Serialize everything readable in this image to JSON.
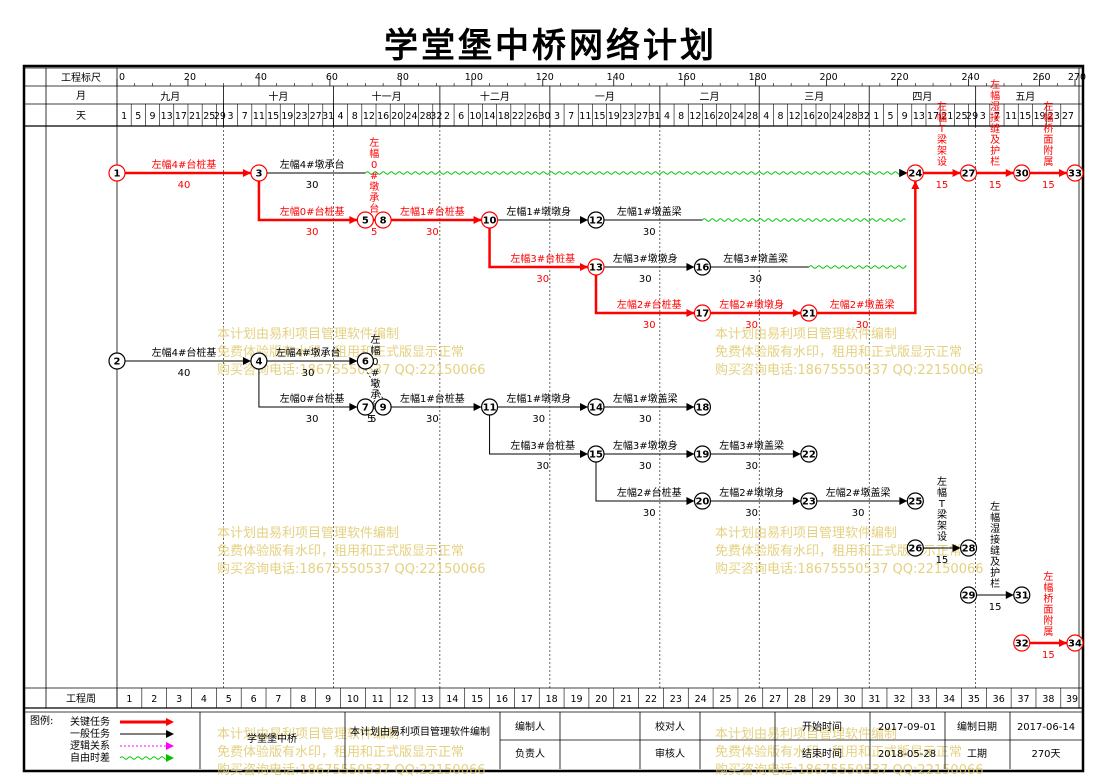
{
  "title": "学堂堡中桥网络计划",
  "header": {
    "row_labels": {
      "scale": "工程标尺",
      "month": "月",
      "day": "天"
    },
    "bottom_label": "工程周",
    "scale_ticks": [
      {
        "v": 0,
        "t": "0"
      },
      {
        "v": 20,
        "t": "20"
      },
      {
        "v": 40,
        "t": "40"
      },
      {
        "v": 60,
        "t": "60"
      },
      {
        "v": 80,
        "t": "80"
      },
      {
        "v": 100,
        "t": "100"
      },
      {
        "v": 120,
        "t": "120"
      },
      {
        "v": 140,
        "t": "140"
      },
      {
        "v": 160,
        "t": "160"
      },
      {
        "v": 180,
        "t": "180"
      },
      {
        "v": 200,
        "t": "200"
      },
      {
        "v": 220,
        "t": "220"
      },
      {
        "v": 240,
        "t": "240"
      },
      {
        "v": 260,
        "t": "260"
      },
      {
        "v": 270,
        "t": "270"
      }
    ],
    "months": [
      {
        "name": "九月",
        "days": 30,
        "start": 1
      },
      {
        "name": "十月",
        "days": 31,
        "start": 3
      },
      {
        "name": "十一月",
        "days": 30,
        "start": 4
      },
      {
        "name": "十二月",
        "days": 31,
        "start": 2
      },
      {
        "name": "一月",
        "days": 31,
        "start": 3
      },
      {
        "name": "二月",
        "days": 28,
        "start": 4
      },
      {
        "name": "三月",
        "days": 31,
        "start": 4
      },
      {
        "name": "四月",
        "days": 30,
        "start": 1
      },
      {
        "name": "五月",
        "days": 28,
        "start": 3
      }
    ],
    "week_count": 39
  },
  "network": {
    "critical_color": "#ff0000",
    "normal_color": "#000000",
    "float_color": "#00c000",
    "nodes": [
      {
        "id": "1",
        "x": 0,
        "row": 1,
        "c": true
      },
      {
        "id": "3",
        "x": 40,
        "row": 1,
        "c": true
      },
      {
        "id": "24",
        "x": 225,
        "row": 1,
        "c": true
      },
      {
        "id": "27",
        "x": 240,
        "row": 1,
        "c": true
      },
      {
        "id": "30",
        "x": 255,
        "row": 1,
        "c": true
      },
      {
        "id": "33",
        "x": 270,
        "row": 1,
        "c": true
      },
      {
        "id": "5",
        "x": 70,
        "row": 2,
        "c": true
      },
      {
        "id": "8",
        "x": 75,
        "row": 2,
        "c": true
      },
      {
        "id": "10",
        "x": 105,
        "row": 2,
        "c": true
      },
      {
        "id": "12",
        "x": 135,
        "row": 2,
        "c": false
      },
      {
        "id": "13",
        "x": 135,
        "row": 3,
        "c": true
      },
      {
        "id": "16",
        "x": 165,
        "row": 3,
        "c": false
      },
      {
        "id": "17",
        "x": 165,
        "row": 4,
        "c": true
      },
      {
        "id": "21",
        "x": 195,
        "row": 4,
        "c": true
      },
      {
        "id": "2",
        "x": 0,
        "row": 5,
        "c": false
      },
      {
        "id": "4",
        "x": 40,
        "row": 5,
        "c": false
      },
      {
        "id": "6",
        "x": 70,
        "row": 5,
        "c": false
      },
      {
        "id": "7",
        "x": 70,
        "row": 6,
        "c": false
      },
      {
        "id": "9",
        "x": 75,
        "row": 6,
        "c": false
      },
      {
        "id": "11",
        "x": 105,
        "row": 6,
        "c": false
      },
      {
        "id": "14",
        "x": 135,
        "row": 6,
        "c": false
      },
      {
        "id": "18",
        "x": 165,
        "row": 6,
        "c": false
      },
      {
        "id": "15",
        "x": 135,
        "row": 7,
        "c": false
      },
      {
        "id": "19",
        "x": 165,
        "row": 7,
        "c": false
      },
      {
        "id": "22",
        "x": 195,
        "row": 7,
        "c": false
      },
      {
        "id": "20",
        "x": 165,
        "row": 8,
        "c": false
      },
      {
        "id": "23",
        "x": 195,
        "row": 8,
        "c": false
      },
      {
        "id": "25",
        "x": 225,
        "row": 8,
        "c": false
      },
      {
        "id": "26",
        "x": 225,
        "row": 9,
        "c": false
      },
      {
        "id": "28",
        "x": 240,
        "row": 9,
        "c": false
      },
      {
        "id": "29",
        "x": 240,
        "row": 10,
        "c": false
      },
      {
        "id": "31",
        "x": 255,
        "row": 10,
        "c": false
      },
      {
        "id": "32",
        "x": 255,
        "row": 11,
        "c": true
      },
      {
        "id": "34",
        "x": 270,
        "row": 11,
        "c": true
      }
    ],
    "tasks": [
      {
        "from": "1",
        "to": "3",
        "name": "左幅4#台桩基",
        "dur": "40",
        "c": true
      },
      {
        "from": "3",
        "to": "24",
        "name": "左幅4#墩承台",
        "dur": "30",
        "c": false,
        "solid_to": 70
      },
      {
        "from": "3",
        "to": "5",
        "name": "左幅0#台桩基",
        "dur": "30",
        "c": true,
        "route": "down"
      },
      {
        "from": "5",
        "to": "8",
        "name": "左幅0#墩承台",
        "dur": "5",
        "c": true,
        "vertical": true
      },
      {
        "from": "8",
        "to": "10",
        "name": "左幅1#台桩基",
        "dur": "30",
        "c": true
      },
      {
        "from": "10",
        "to": "12",
        "name": "左幅1#墩墩身",
        "dur": "",
        "c": false
      },
      {
        "from": "12",
        "to": "24",
        "name": "左幅1#墩盖梁",
        "dur": "30",
        "c": false,
        "solid_to": 165
      },
      {
        "from": "10",
        "to": "13",
        "name": "左幅3#台桩基",
        "dur": "30",
        "c": true,
        "route": "down"
      },
      {
        "from": "13",
        "to": "16",
        "name": "左幅3#墩墩身",
        "dur": "30",
        "c": false
      },
      {
        "from": "16",
        "to": "24",
        "name": "左幅3#墩盖梁",
        "dur": "30",
        "c": false,
        "solid_to": 195
      },
      {
        "from": "13",
        "to": "17",
        "name": "左幅2#台桩基",
        "dur": "30",
        "c": true,
        "route": "down"
      },
      {
        "from": "17",
        "to": "21",
        "name": "左幅2#墩墩身",
        "dur": "30",
        "c": true
      },
      {
        "from": "21",
        "to": "24",
        "name": "左幅2#墩盖梁",
        "dur": "30",
        "c": true,
        "route": "up"
      },
      {
        "from": "24",
        "to": "27",
        "name": "左幅T梁架设",
        "dur": "15",
        "c": true,
        "vertical": true
      },
      {
        "from": "27",
        "to": "30",
        "name": "左幅湿接缝及护栏",
        "dur": "15",
        "c": true,
        "vertical": true
      },
      {
        "from": "30",
        "to": "33",
        "name": "左幅桥面附属",
        "dur": "15",
        "c": true,
        "vertical": true
      },
      {
        "from": "2",
        "to": "4",
        "name": "左幅4#台桩基",
        "dur": "40",
        "c": false
      },
      {
        "from": "4",
        "to": "6",
        "name": "左幅4#墩承台",
        "dur": "30",
        "c": false
      },
      {
        "from": "6",
        "to": "9",
        "name": "左幅0#墩承台",
        "dur": "5",
        "c": false,
        "vertical": true,
        "dashdown": true
      },
      {
        "from": "4",
        "to": "7",
        "name": "左幅0#台桩基",
        "dur": "30",
        "c": false,
        "route": "down"
      },
      {
        "from": "7",
        "to": "9",
        "name": "",
        "dur": "5",
        "c": false
      },
      {
        "from": "9",
        "to": "11",
        "name": "左幅1#台桩基",
        "dur": "30",
        "c": false
      },
      {
        "from": "11",
        "to": "14",
        "name": "左幅1#墩墩身",
        "dur": "30",
        "c": false
      },
      {
        "from": "14",
        "to": "18",
        "name": "左幅1#墩盖梁",
        "dur": "30",
        "c": false
      },
      {
        "from": "11",
        "to": "15",
        "name": "左幅3#台桩基",
        "dur": "30",
        "c": false,
        "route": "down"
      },
      {
        "from": "15",
        "to": "19",
        "name": "左幅3#墩墩身",
        "dur": "30",
        "c": false
      },
      {
        "from": "19",
        "to": "22",
        "name": "左幅3#墩盖梁",
        "dur": "30",
        "c": false
      },
      {
        "from": "15",
        "to": "20",
        "name": "左幅2#台桩基",
        "dur": "30",
        "c": false,
        "route": "down"
      },
      {
        "from": "20",
        "to": "23",
        "name": "左幅2#墩墩身",
        "dur": "30",
        "c": false
      },
      {
        "from": "23",
        "to": "25",
        "name": "左幅2#墩盖梁",
        "dur": "30",
        "c": false
      },
      {
        "from": "26",
        "to": "28",
        "name": "左幅T梁架设",
        "dur": "15",
        "c": false,
        "vertical": true
      },
      {
        "from": "29",
        "to": "31",
        "name": "左幅湿接缝及护栏",
        "dur": "15",
        "c": false,
        "vertical": true
      },
      {
        "from": "32",
        "to": "34",
        "name": "左幅桥面附属",
        "dur": "15",
        "c": true,
        "vertical": true
      }
    ]
  },
  "watermark": [
    "本计划由易利项目管理软件编制",
    "免费体验版有水印，租用和正式版显示正常",
    "购买咨询电话:18675550537 QQ:22150066"
  ],
  "footer": {
    "legend_title": "图例:",
    "legend": [
      {
        "label": "关键任务",
        "color": "#ff0000"
      },
      {
        "label": "一般任务",
        "color": "#000000"
      },
      {
        "label": "逻辑关系",
        "color": "#ff00ff"
      },
      {
        "label": "自由时差",
        "color": "#00c000"
      }
    ],
    "project_name": "学堂堡中桥",
    "compiled_by_software": "本计划由易利项目管理软件编制",
    "compiler_label": "编制人",
    "proofreader_label": "校对人",
    "responsible_label": "负责人",
    "auditor_label": "审核人",
    "start_label": "开始时间",
    "start_value": "2017-09-01",
    "end_label": "结束时间",
    "end_value": "2018-05-28",
    "compile_date_label": "编制日期",
    "compile_date_value": "2017-06-14",
    "duration_label": "工期",
    "duration_value": "270天"
  }
}
